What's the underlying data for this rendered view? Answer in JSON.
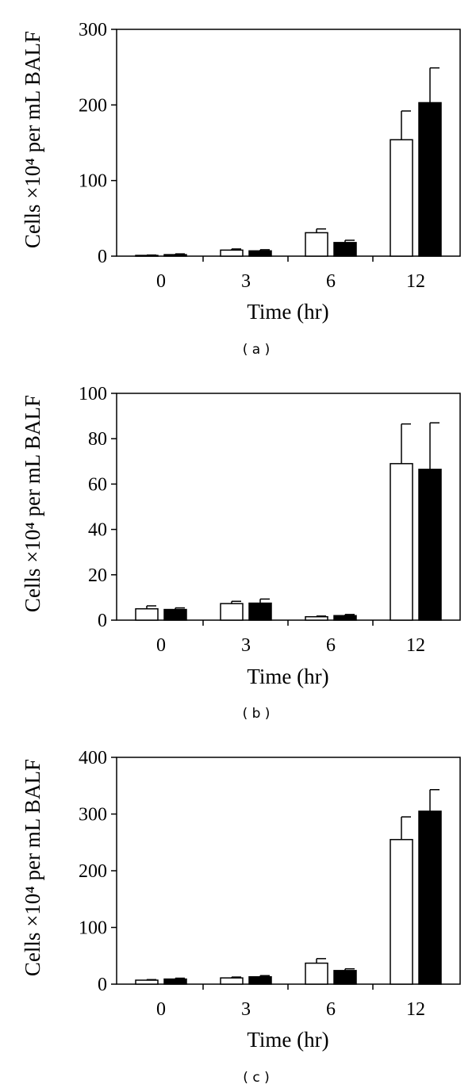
{
  "chart_data": [
    {
      "type": "bar",
      "panel_label": "( a )",
      "ylabel": "Cells ×10⁴ per mL BALF",
      "xlabel": "Time (hr)",
      "categories": [
        "0",
        "3",
        "6",
        "12"
      ],
      "ylim": [
        0,
        300
      ],
      "yticks": [
        0,
        100,
        200,
        300
      ],
      "grid": false,
      "series": [
        {
          "fill": "#ffffff",
          "values": [
            1,
            8,
            31,
            154
          ],
          "errors": [
            0.5,
            1.5,
            5,
            38
          ]
        },
        {
          "fill": "#000000",
          "values": [
            2,
            7,
            18,
            203
          ],
          "errors": [
            1,
            1.5,
            3,
            46
          ]
        }
      ]
    },
    {
      "type": "bar",
      "panel_label": "( b )",
      "ylabel": "Cells ×10⁴ per mL BALF",
      "xlabel": "Time (hr)",
      "categories": [
        "0",
        "3",
        "6",
        "12"
      ],
      "ylim": [
        0,
        100
      ],
      "yticks": [
        0,
        20,
        40,
        60,
        80,
        100
      ],
      "grid": false,
      "series": [
        {
          "fill": "#ffffff",
          "values": [
            5,
            7.3,
            1.5,
            69
          ],
          "errors": [
            1.3,
            1,
            0.3,
            17.5
          ]
        },
        {
          "fill": "#000000",
          "values": [
            4.7,
            7.5,
            2,
            66.5
          ],
          "errors": [
            0.7,
            1.8,
            0.5,
            20.5
          ]
        }
      ]
    },
    {
      "type": "bar",
      "panel_label": "( c )",
      "ylabel": "Cells ×10⁴ per mL BALF",
      "xlabel": "Time (hr)",
      "categories": [
        "0",
        "3",
        "6",
        "12"
      ],
      "ylim": [
        0,
        400
      ],
      "yticks": [
        0,
        100,
        200,
        300,
        400
      ],
      "grid": false,
      "series": [
        {
          "fill": "#ffffff",
          "values": [
            7,
            11,
            37,
            255
          ],
          "errors": [
            1,
            1.5,
            8,
            40
          ]
        },
        {
          "fill": "#000000",
          "values": [
            9,
            13,
            24,
            305
          ],
          "errors": [
            1.5,
            2,
            3,
            38
          ]
        }
      ]
    }
  ]
}
